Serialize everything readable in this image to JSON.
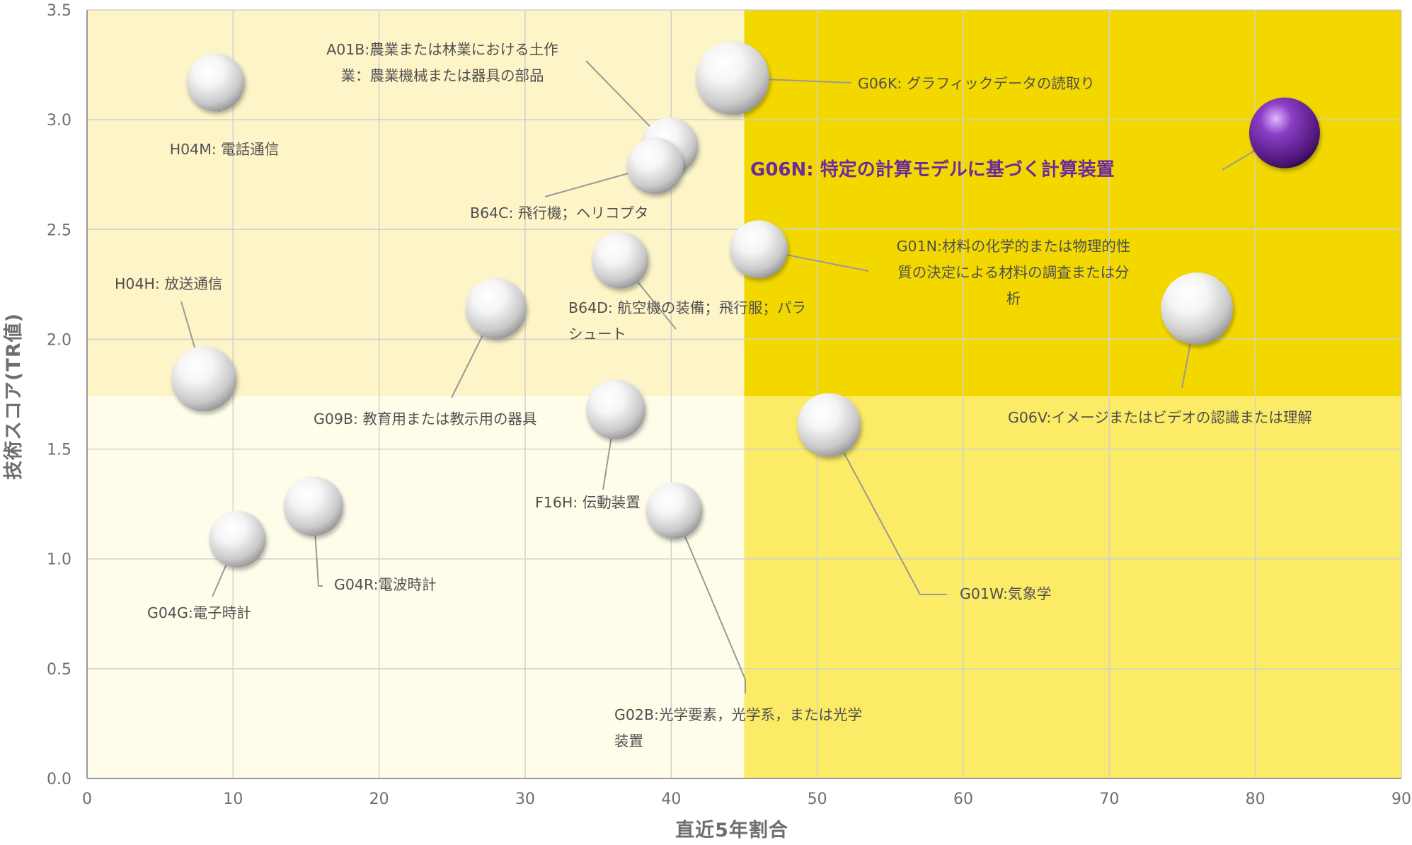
{
  "chart_data": {
    "type": "scatter",
    "xlabel": "直近5年割合",
    "ylabel": "技術スコア(TR値)",
    "xlim": [
      0,
      90
    ],
    "ylim": [
      0.0,
      3.5
    ],
    "x_ticks": [
      "0",
      "10",
      "20",
      "30",
      "40",
      "50",
      "60",
      "70",
      "80",
      "90"
    ],
    "y_ticks": [
      "0.0",
      "0.5",
      "1.0",
      "1.5",
      "2.0",
      "2.5",
      "3.0",
      "3.5"
    ],
    "grid": true,
    "quadrant_split": {
      "x": 45,
      "y": 1.74
    },
    "colors": {
      "upper_left": "#fdf4c8",
      "lower_left": "#fffdea",
      "upper_right": "#f3d800",
      "lower_right": "#fbeb66",
      "bubble": "#e8e8e8",
      "highlight_bubble": "#6a2c9a",
      "leader_line": "#999999",
      "highlight_label": "#6a2c9a"
    },
    "points": [
      {
        "lines": [
          "H04M: 電話通信"
        ],
        "x": 8.8,
        "y": 3.17,
        "highlight": false
      },
      {
        "lines": [
          "A01B:農業または林業における土作",
          "業：農業機械または器具の部品"
        ],
        "x": 39.9,
        "y": 2.88,
        "highlight": false
      },
      {
        "lines": [
          "G06K: グラフィックデータの読取り"
        ],
        "x": 44.2,
        "y": 3.19,
        "highlight": false
      },
      {
        "lines": [
          "B64C: 飛行機；ヘリコプタ"
        ],
        "x": 38.9,
        "y": 2.79,
        "highlight": false
      },
      {
        "lines": [
          "G06N: 特定の計算モデルに基づく計算装置"
        ],
        "x": 82.0,
        "y": 2.94,
        "highlight": true
      },
      {
        "lines": [
          "G01N:材料の化学的または物理的性",
          "質の決定による材料の調査または分",
          "析"
        ],
        "x": 46.0,
        "y": 2.41,
        "highlight": false
      },
      {
        "lines": [
          "B64D: 航空機の装備；飛行服；パラ",
          "シュート"
        ],
        "x": 36.5,
        "y": 2.36,
        "highlight": false
      },
      {
        "lines": [
          "H04H: 放送通信"
        ],
        "x": 8.0,
        "y": 1.82,
        "highlight": false
      },
      {
        "lines": [
          "G09B: 教育用または教示用の器具"
        ],
        "x": 28.0,
        "y": 2.14,
        "highlight": false
      },
      {
        "lines": [
          "G06V:イメージまたはビデオの認識または理解"
        ],
        "x": 76.0,
        "y": 2.14,
        "highlight": false
      },
      {
        "lines": [
          "F16H: 伝動装置"
        ],
        "x": 36.2,
        "y": 1.68,
        "highlight": false
      },
      {
        "lines": [
          "G01W:気象学"
        ],
        "x": 50.8,
        "y": 1.61,
        "highlight": false
      },
      {
        "lines": [
          "G04R:電波時計"
        ],
        "x": 15.5,
        "y": 1.24,
        "highlight": false
      },
      {
        "lines": [
          "G04G:電子時計"
        ],
        "x": 10.3,
        "y": 1.09,
        "highlight": false
      },
      {
        "lines": [
          "G02B:光学要素，光学系，または光学",
          "装置"
        ],
        "x": 40.2,
        "y": 1.22,
        "highlight": false
      }
    ]
  }
}
